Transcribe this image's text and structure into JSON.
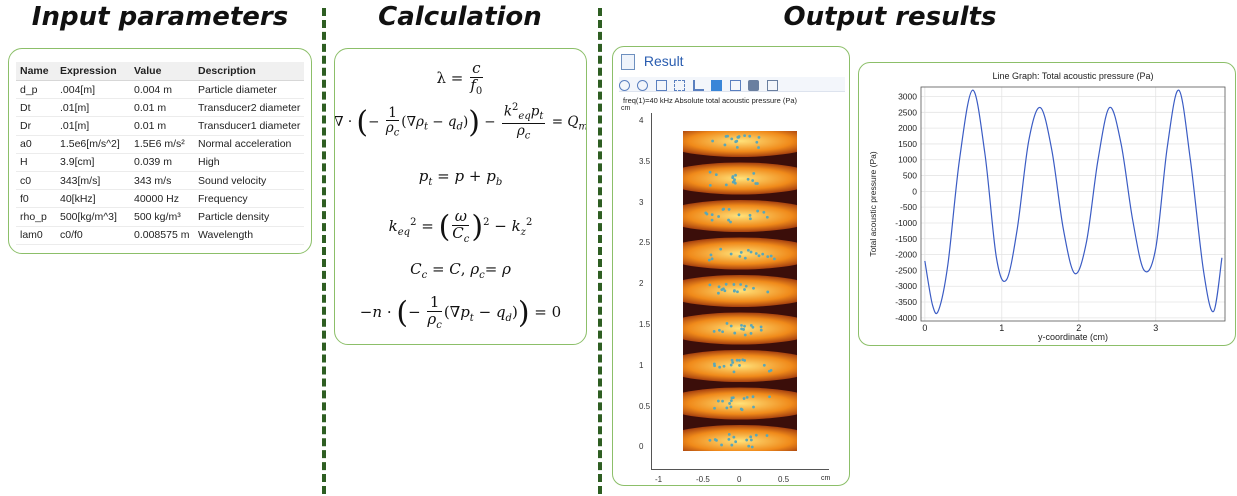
{
  "headings": {
    "input": "Input parameters",
    "calculation": "Calculation",
    "output": "Output results"
  },
  "parameters": {
    "columns": [
      "Name",
      "Expression",
      "Value",
      "Description"
    ],
    "rows": [
      [
        "d_p",
        ".004[m]",
        "0.004 m",
        "Particle diameter"
      ],
      [
        "Dt",
        ".01[m]",
        "0.01 m",
        "Transducer2 diameter"
      ],
      [
        "Dr",
        ".01[m]",
        "0.01 m",
        "Transducer1 diameter"
      ],
      [
        "a0",
        "1.5e6[m/s^2]",
        "1.5E6 m/s²",
        "Normal acceleration"
      ],
      [
        "H",
        "3.9[cm]",
        "0.039 m",
        "High"
      ],
      [
        "c0",
        "343[m/s]",
        "343 m/s",
        "Sound velocity"
      ],
      [
        "f0",
        "40[kHz]",
        "40000 Hz",
        "Frequency"
      ],
      [
        "rho_p",
        "500[kg/m^3]",
        "500 kg/m³",
        "Particle density"
      ],
      [
        "lam0",
        "c0/f0",
        "0.008575 m",
        "Wavelength"
      ]
    ]
  },
  "result_window": {
    "title": "Result",
    "plot_title": "freq(1)=40 kHz   Absolute total acoustic pressure (Pa)",
    "y_unit": "cm",
    "x_unit": "cm",
    "y_ticks": [
      "4",
      "3.5",
      "3",
      "2.5",
      "2",
      "1.5",
      "1",
      "0.5",
      "0"
    ],
    "x_ticks": [
      "-1",
      "-0.5",
      "0",
      "0.5"
    ]
  },
  "chart_data": {
    "type": "line",
    "title": "Line Graph: Total acoustic pressure (Pa)",
    "xlabel": "y-coordinate (cm)",
    "ylabel": "Total acoustic pressure (Pa)",
    "xlim": [
      -0.05,
      3.9
    ],
    "ylim": [
      -4100,
      3300
    ],
    "x_ticks": [
      0,
      1,
      2,
      3
    ],
    "y_ticks": [
      3000,
      2500,
      2000,
      1500,
      1000,
      500,
      0,
      -500,
      -1000,
      -1500,
      -2000,
      -2500,
      -3000,
      -3500,
      -4000
    ],
    "grid": true,
    "series": [
      {
        "x": [
          0,
          0.1,
          0.18,
          0.3,
          0.45,
          0.62,
          0.78,
          0.93,
          1.06,
          1.2,
          1.35,
          1.5,
          1.65,
          1.8,
          1.95,
          2.1,
          2.25,
          2.4,
          2.55,
          2.7,
          2.85,
          3.0,
          3.15,
          3.3,
          3.45,
          3.62,
          3.75,
          3.86
        ],
        "values": [
          -2200,
          -3600,
          -3750,
          -2300,
          1000,
          3200,
          1200,
          -2100,
          -2800,
          -1200,
          1600,
          2650,
          1300,
          -1200,
          -2600,
          -1600,
          1000,
          2650,
          1500,
          -900,
          -2500,
          -1800,
          1400,
          3200,
          1000,
          -2500,
          -3800,
          -2100
        ]
      }
    ],
    "line_color": "#3b5cc4"
  }
}
